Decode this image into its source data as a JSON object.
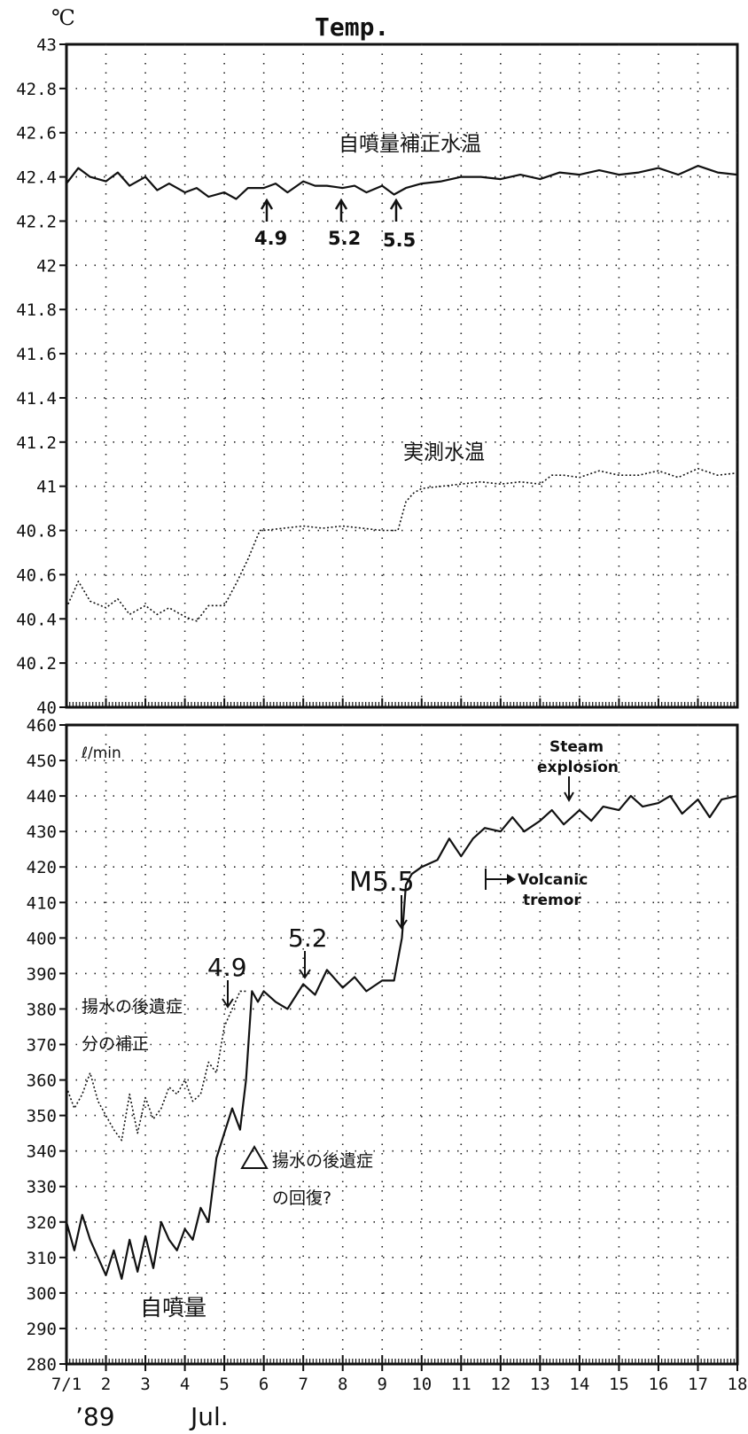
{
  "chart_data": [
    {
      "type": "line",
      "title": "Temp.",
      "unit_label": "℃",
      "ylim": [
        40,
        43
      ],
      "xlim": [
        1,
        18
      ],
      "y_ticks": [
        40,
        40.2,
        40.4,
        40.6,
        40.8,
        41,
        41.2,
        41.4,
        41.6,
        41.8,
        42,
        42.2,
        42.4,
        42.6,
        42.8,
        43
      ],
      "y_tick_labels": [
        "40",
        "40.2",
        "40.4",
        "40.6",
        "40.8",
        "41",
        "41.2",
        "41.4",
        "41.6",
        "41.8",
        "42",
        "42.2",
        "42.4",
        "42.6",
        "42.8",
        "43"
      ],
      "grid": true,
      "series": [
        {
          "name": "自噴量補正水温",
          "style": "solid",
          "x": [
            1,
            1.3,
            1.6,
            2,
            2.3,
            2.6,
            3,
            3.3,
            3.6,
            4,
            4.3,
            4.6,
            5,
            5.3,
            5.6,
            6,
            6.3,
            6.6,
            7,
            7.3,
            7.6,
            8,
            8.3,
            8.6,
            9,
            9.3,
            9.6,
            10,
            10.5,
            11,
            11.5,
            12,
            12.5,
            13,
            13.5,
            14,
            14.5,
            15,
            15.5,
            16,
            16.5,
            17,
            17.5,
            18
          ],
          "y": [
            42.37,
            42.44,
            42.4,
            42.38,
            42.42,
            42.36,
            42.4,
            42.34,
            42.37,
            42.33,
            42.35,
            42.31,
            42.33,
            42.3,
            42.35,
            42.35,
            42.37,
            42.33,
            42.38,
            42.36,
            42.36,
            42.35,
            42.36,
            42.33,
            42.36,
            42.32,
            42.35,
            42.37,
            42.38,
            42.4,
            42.4,
            42.39,
            42.41,
            42.39,
            42.42,
            42.41,
            42.43,
            42.41,
            42.42,
            42.44,
            42.41,
            42.45,
            42.42,
            42.41
          ]
        },
        {
          "name": "実測水温",
          "style": "dotted",
          "x": [
            1,
            1.3,
            1.6,
            2,
            2.3,
            2.6,
            3,
            3.3,
            3.6,
            4,
            4.3,
            4.6,
            5,
            5.3,
            5.6,
            5.9,
            6,
            6.5,
            7,
            7.5,
            8,
            8.5,
            9,
            9.4,
            9.6,
            9.8,
            10,
            10.5,
            11,
            11.5,
            12,
            12.5,
            13,
            13.3,
            13.6,
            14,
            14.5,
            15,
            15.5,
            16,
            16.5,
            17,
            17.5,
            18
          ],
          "y": [
            40.45,
            40.57,
            40.48,
            40.45,
            40.49,
            40.42,
            40.46,
            40.42,
            40.45,
            40.41,
            40.39,
            40.46,
            40.46,
            40.56,
            40.67,
            40.8,
            40.8,
            40.81,
            40.82,
            40.81,
            40.82,
            40.81,
            40.8,
            40.8,
            40.93,
            40.97,
            40.99,
            41.0,
            41.01,
            41.02,
            41.01,
            41.02,
            41.01,
            41.05,
            41.05,
            41.04,
            41.07,
            41.05,
            41.05,
            41.07,
            41.04,
            41.08,
            41.05,
            41.06
          ]
        }
      ],
      "annotations": [
        {
          "text": "4.9",
          "x": 6.1,
          "arrow": "up"
        },
        {
          "text": "5.2",
          "x": 8.0,
          "arrow": "up"
        },
        {
          "text": "5.5",
          "x": 9.4,
          "arrow": "up"
        }
      ]
    },
    {
      "type": "line",
      "unit_label": "ℓ/min",
      "ylim": [
        280,
        460
      ],
      "xlim": [
        1,
        18
      ],
      "y_ticks": [
        280,
        290,
        300,
        310,
        320,
        330,
        340,
        350,
        360,
        370,
        380,
        390,
        400,
        410,
        420,
        430,
        440,
        450,
        460
      ],
      "y_tick_labels": [
        "280",
        "290",
        "300",
        "310",
        "320",
        "330",
        "340",
        "350",
        "360",
        "370",
        "380",
        "390",
        "400",
        "410",
        "420",
        "430",
        "440",
        "450",
        "460"
      ],
      "x_ticks": [
        1,
        2,
        3,
        4,
        5,
        6,
        7,
        8,
        9,
        10,
        11,
        12,
        13,
        14,
        15,
        16,
        17,
        18
      ],
      "x_tick_labels": [
        "7/1",
        "2",
        "3",
        "4",
        "5",
        "6",
        "7",
        "8",
        "9",
        "10",
        "11",
        "12",
        "13",
        "14",
        "15",
        "16",
        "17",
        "18"
      ],
      "grid": true,
      "series": [
        {
          "name": "自噴量",
          "style": "solid",
          "x": [
            1,
            1.2,
            1.4,
            1.6,
            1.8,
            2,
            2.2,
            2.4,
            2.6,
            2.8,
            3,
            3.2,
            3.4,
            3.6,
            3.8,
            4,
            4.2,
            4.4,
            4.6,
            4.8,
            5,
            5.2,
            5.4,
            5.55,
            5.7,
            5.85,
            6,
            6.3,
            6.6,
            7,
            7.3,
            7.6,
            8,
            8.3,
            8.6,
            9,
            9.3,
            9.5,
            9.6,
            9.75,
            10,
            10.4,
            10.7,
            11,
            11.3,
            11.6,
            12,
            12.3,
            12.6,
            13,
            13.3,
            13.6,
            14,
            14.3,
            14.6,
            15,
            15.3,
            15.6,
            16,
            16.3,
            16.6,
            17,
            17.3,
            17.6,
            18
          ],
          "y": [
            320,
            312,
            322,
            315,
            310,
            305,
            312,
            304,
            315,
            306,
            316,
            307,
            320,
            315,
            312,
            318,
            315,
            324,
            320,
            338,
            345,
            352,
            346,
            360,
            385,
            382,
            385,
            382,
            380,
            387,
            384,
            391,
            386,
            389,
            385,
            388,
            388,
            400,
            415,
            418,
            420,
            422,
            428,
            423,
            428,
            431,
            430,
            434,
            430,
            433,
            436,
            432,
            436,
            433,
            437,
            436,
            440,
            437,
            438,
            440,
            435,
            439,
            434,
            439,
            440
          ]
        },
        {
          "name": "揚水の後遺症分の補正",
          "style": "dotted",
          "x": [
            1,
            1.2,
            1.4,
            1.6,
            1.8,
            2,
            2.2,
            2.4,
            2.6,
            2.8,
            3,
            3.2,
            3.4,
            3.6,
            3.8,
            4,
            4.2,
            4.4,
            4.6,
            4.8,
            5,
            5.2,
            5.4,
            5.55
          ],
          "y": [
            358,
            352,
            356,
            362,
            354,
            350,
            346,
            343,
            356,
            345,
            355,
            349,
            352,
            358,
            356,
            360,
            354,
            356,
            365,
            362,
            375,
            380,
            385,
            385
          ]
        }
      ],
      "annotations": [
        {
          "text": "4.9",
          "x": 5.0,
          "arrow": "down"
        },
        {
          "text": "5.2",
          "x": 7.0,
          "arrow": "down"
        },
        {
          "text": "M5.5",
          "x": 9.5,
          "arrow": "down"
        },
        {
          "text": "Volcanic",
          "x": 11.7
        },
        {
          "text": "tremor",
          "x": 12.3
        },
        {
          "text": "Steam",
          "x": 13.6
        },
        {
          "text": "explosion",
          "x": 13.8,
          "arrow": "down"
        },
        {
          "text": "揚水の後遺症",
          "x": 1.3
        },
        {
          "text": "分の補正",
          "x": 1.3
        },
        {
          "text": "△ 揚水の後遺症",
          "x": 6.0
        },
        {
          "text": "の回復?",
          "x": 6.2
        }
      ],
      "footer": [
        "’89",
        "Jul."
      ]
    }
  ],
  "labels": {
    "top_title": "Temp.",
    "top_unit": "℃",
    "top_series_solid": "自噴量補正水温",
    "top_series_dotted": "実測水温",
    "top_ann_a": "4.9",
    "top_ann_b": "5.2",
    "top_ann_c": "5.5",
    "bottom_unit": "ℓ/min",
    "bottom_ann_a": "4.9",
    "bottom_ann_b": "5.2",
    "bottom_ann_c": "M5.5",
    "volcanic": "Volcanic",
    "tremor": "tremor",
    "steam": "Steam",
    "explosion": "explosion",
    "corr_1": "揚水の後遺症",
    "corr_2": "分の補正",
    "recov_1": "揚水の後遺症",
    "recov_2": "の回復?",
    "flow_label": "自噴量",
    "year": "’89",
    "month": "Jul."
  }
}
